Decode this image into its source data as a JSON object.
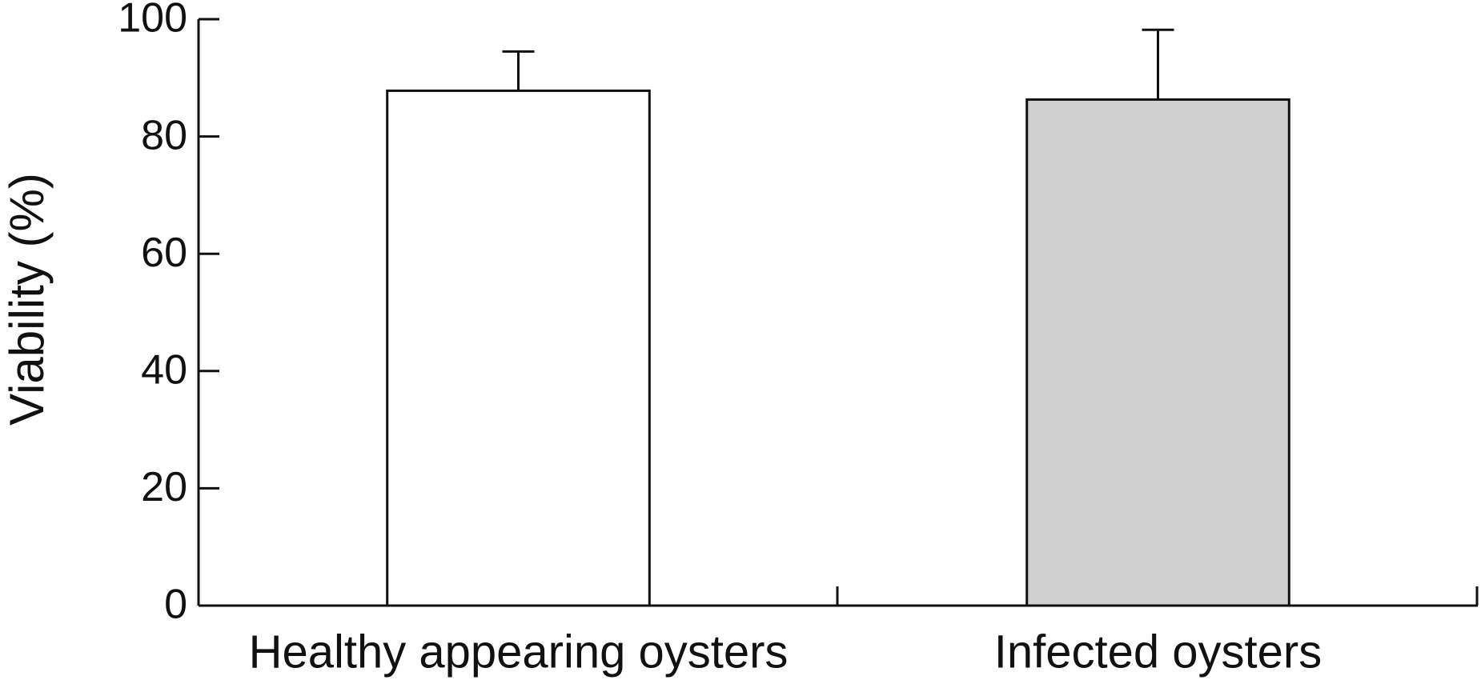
{
  "chart_data": {
    "type": "bar",
    "y_label": "Viability (%)",
    "categories": [
      "Healthy appearing oysters",
      "Infected oysters"
    ],
    "values": [
      87.8,
      86.3
    ],
    "errors": [
      6.7,
      11.9
    ],
    "colors": [
      "#ffffff",
      "#d0d0d0"
    ],
    "ylim": [
      0,
      100
    ],
    "yticks": [
      0,
      20,
      40,
      60,
      80,
      100
    ],
    "grid": false
  }
}
